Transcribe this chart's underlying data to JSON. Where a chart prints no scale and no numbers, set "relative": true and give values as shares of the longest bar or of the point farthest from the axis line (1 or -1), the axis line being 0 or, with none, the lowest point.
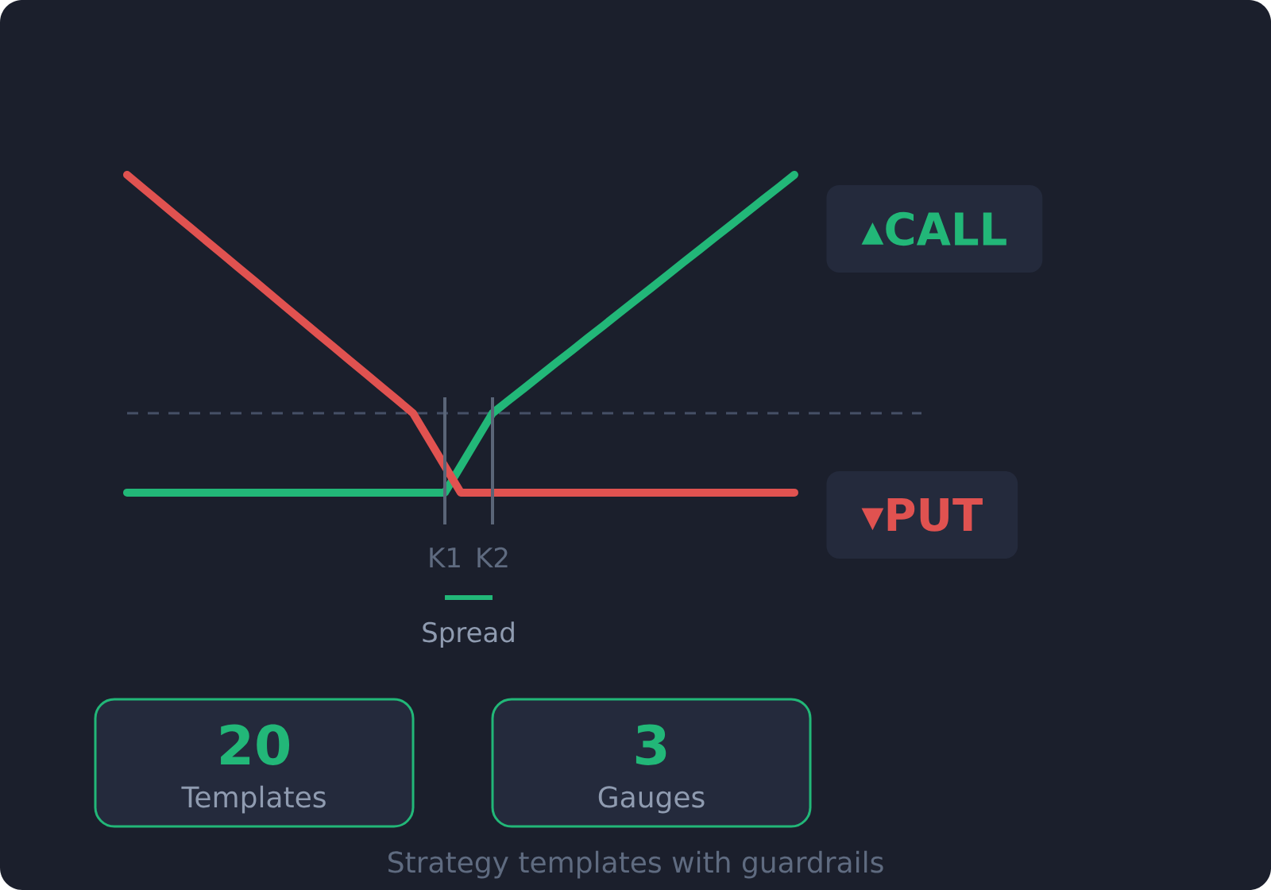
{
  "chart_data": [
    {
      "type": "line",
      "relative": true,
      "marker": "none",
      "line_style": "solid",
      "categories": [
        null,
        null,
        null,
        null,
        null,
        null,
        null,
        null,
        null,
        null,
        null,
        null,
        null,
        null,
        null,
        null,
        null,
        null,
        null,
        null,
        "K1",
        null,
        null,
        "K2",
        null,
        null,
        null,
        null,
        null,
        null,
        null,
        null,
        null,
        null,
        null,
        null,
        null,
        null,
        null,
        null,
        null,
        null,
        null,
        null,
        null,
        null,
        null,
        null,
        null,
        null,
        null
      ],
      "series": [
        {
          "name": "▴CALL",
          "color": "#22b778",
          "values": [
            -0.333,
            -0.333,
            -0.333,
            -0.333,
            -0.333,
            -0.333,
            -0.333,
            -0.333,
            -0.333,
            -0.333,
            -0.333,
            -0.333,
            -0.333,
            -0.333,
            -0.333,
            -0.333,
            -0.333,
            -0.333,
            -0.333,
            -0.333,
            -0.333,
            -0.222,
            -0.111,
            0,
            0.053,
            0.105,
            0.158,
            0.211,
            0.263,
            0.316,
            0.368,
            0.421,
            0.474,
            0.526,
            0.579,
            0.632,
            0.684,
            0.737,
            0.789,
            0.842,
            0.895,
            0.947,
            1,
            null,
            null,
            null,
            null,
            null,
            null,
            null,
            null
          ]
        },
        {
          "name": "▾PUT",
          "color": "#e05250",
          "values": [
            1,
            0.944,
            0.889,
            0.833,
            0.778,
            0.722,
            0.667,
            0.611,
            0.556,
            0.5,
            0.444,
            0.389,
            0.333,
            0.278,
            0.222,
            0.167,
            0.111,
            0.056,
            0,
            -0.111,
            -0.222,
            -0.333,
            -0.333,
            -0.333,
            -0.333,
            -0.333,
            -0.333,
            -0.333,
            -0.333,
            -0.333,
            -0.333,
            -0.333,
            -0.333,
            -0.333,
            -0.333,
            -0.333,
            -0.333,
            -0.333,
            -0.333,
            -0.333,
            -0.333,
            -0.333,
            -0.333,
            null,
            null,
            null,
            null,
            null,
            null,
            null,
            null
          ]
        }
      ],
      "ref_lines": [
        {
          "axis": "y",
          "value": 0,
          "line_style": "dashed",
          "color": "#465066"
        }
      ],
      "annotations": [
        "Spread"
      ]
    },
    {
      "type": "other",
      "categories": [
        "Templates",
        "Gauges"
      ],
      "values": [
        20,
        3
      ],
      "data_labels": true,
      "color": "#22b778",
      "annotations": [
        "Strategy templates with guardrails"
      ]
    }
  ]
}
